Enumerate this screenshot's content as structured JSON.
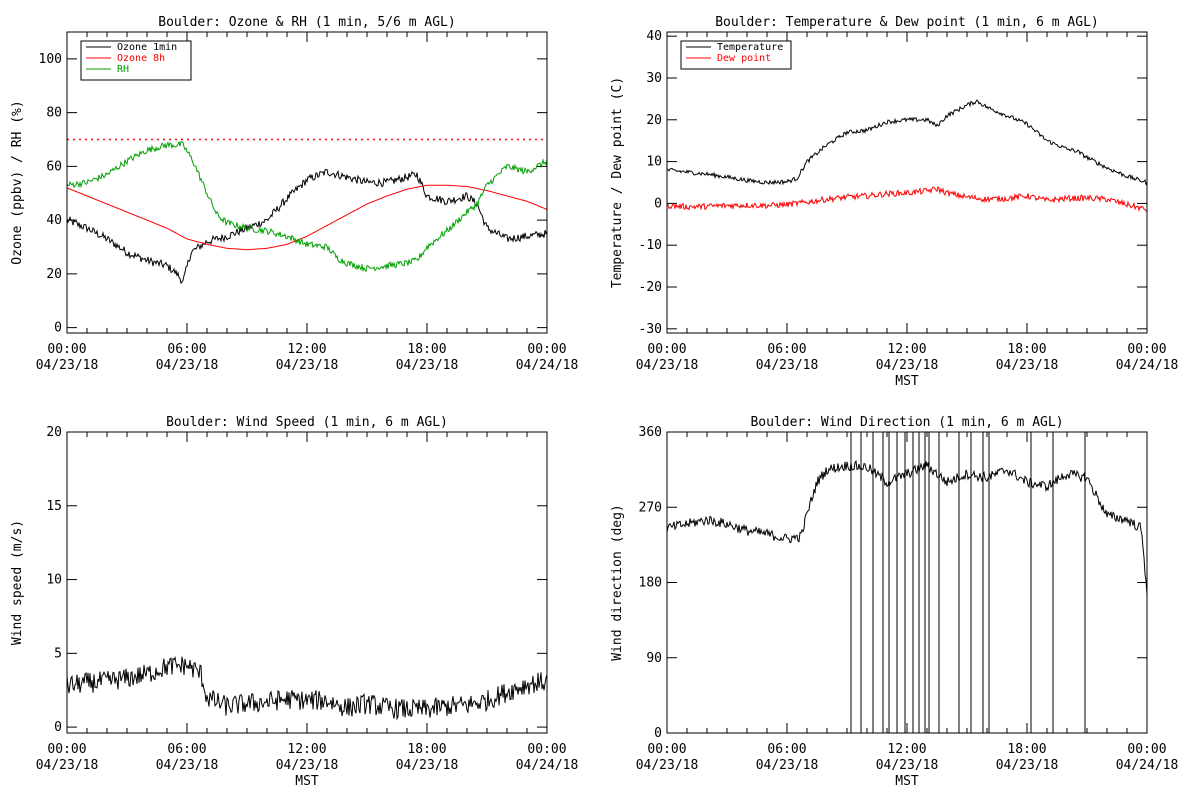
{
  "colors": {
    "black": "#000000",
    "red": "#ff0000",
    "green": "#00a000",
    "background": "#ffffff"
  },
  "chart_data": [
    {
      "id": "ozone_rh",
      "type": "line",
      "title": "Boulder: Ozone & RH (1 min, 5/6 m AGL)",
      "ylabel": "Ozone (ppbv) / RH (%)",
      "xlabel": "",
      "xlim": [
        0,
        24
      ],
      "ylim": [
        -2,
        110
      ],
      "yticks": [
        0,
        20,
        40,
        60,
        80,
        100
      ],
      "xticklabels": [
        [
          "00:00",
          "04/23/18"
        ],
        [
          "06:00",
          "04/23/18"
        ],
        [
          "12:00",
          "04/23/18"
        ],
        [
          "18:00",
          "04/23/18"
        ],
        [
          "00:00",
          "04/24/18"
        ]
      ],
      "reference_line": {
        "y": 70,
        "style": "dotted",
        "color": "#ff0000"
      },
      "legend": {
        "placement": "top-left",
        "entries": [
          "Ozone 1min",
          "Ozone 8h",
          "RH"
        ]
      },
      "series": [
        {
          "name": "Ozone 1min",
          "color": "#000000",
          "noise": 1.5,
          "x": [
            0,
            1,
            2,
            3,
            4,
            5,
            5.5,
            5.8,
            6.2,
            7,
            8,
            9,
            10,
            11,
            12,
            13,
            14,
            15,
            16,
            17,
            17.5,
            18,
            19,
            20,
            20.5,
            21,
            22,
            23,
            24
          ],
          "y": [
            40,
            37,
            33,
            28,
            25,
            23,
            20,
            17,
            28,
            32,
            34,
            37,
            40,
            48,
            55,
            58,
            56,
            54,
            54,
            56,
            57,
            49,
            47,
            49,
            46,
            37,
            33,
            34,
            35
          ]
        },
        {
          "name": "Ozone 8h",
          "color": "#ff0000",
          "noise": 0,
          "x": [
            0,
            1,
            2,
            3,
            4,
            5,
            6,
            7,
            8,
            9,
            10,
            11,
            12,
            13,
            14,
            15,
            16,
            17,
            18,
            19,
            20,
            21,
            22,
            23,
            24
          ],
          "y": [
            52,
            49,
            46,
            43,
            40,
            37,
            33,
            31,
            29.5,
            29,
            29.5,
            31,
            34,
            38,
            42,
            46,
            49,
            51.5,
            53,
            53,
            52.5,
            51,
            49,
            47,
            44
          ]
        },
        {
          "name": "RH",
          "color": "#00a000",
          "noise": 1.2,
          "x": [
            0,
            1,
            2,
            3,
            4,
            5,
            5.8,
            6.3,
            7,
            7.5,
            8,
            9,
            10,
            11,
            12,
            13,
            13.5,
            14,
            15,
            16,
            17,
            17.5,
            18,
            19,
            20,
            20.5,
            21,
            22,
            22.5,
            23,
            24
          ],
          "y": [
            53,
            54,
            57,
            62,
            66,
            68,
            68,
            62,
            50,
            42,
            39,
            37,
            36,
            34,
            31,
            30,
            26,
            24,
            22,
            23,
            24,
            25,
            30,
            36,
            43,
            46,
            53,
            60,
            59,
            58,
            62
          ]
        }
      ]
    },
    {
      "id": "temp_dew",
      "type": "line",
      "title": "Boulder: Temperature & Dew point (1 min, 6 m AGL)",
      "ylabel": "Temperature / Dew point (C)",
      "xlabel": "MST",
      "xlim": [
        0,
        24
      ],
      "ylim": [
        -31,
        41
      ],
      "yticks": [
        -30,
        -20,
        -10,
        0,
        10,
        20,
        30,
        40
      ],
      "xticklabels": [
        [
          "00:00",
          "04/23/18"
        ],
        [
          "06:00",
          "04/23/18"
        ],
        [
          "12:00",
          "04/23/18"
        ],
        [
          "18:00",
          "04/23/18"
        ],
        [
          "00:00",
          "04/24/18"
        ]
      ],
      "legend": {
        "placement": "top-left",
        "entries": [
          "Temperature",
          "Dew point"
        ]
      },
      "series": [
        {
          "name": "Temperature",
          "color": "#000000",
          "noise": 0.5,
          "x": [
            0,
            1,
            2,
            3,
            4,
            5,
            6,
            6.5,
            7,
            8,
            9,
            10,
            11,
            12,
            13,
            13.5,
            14,
            15,
            15.5,
            16,
            17,
            18,
            19,
            20,
            20.5,
            21,
            22,
            23,
            24
          ],
          "y": [
            8,
            7.5,
            7,
            6.3,
            5.5,
            5,
            5.2,
            6,
            10,
            14,
            17,
            17.5,
            19.5,
            20,
            20,
            18.5,
            21,
            23.5,
            24.5,
            23,
            21,
            19,
            15,
            13,
            12.5,
            11,
            8.5,
            6.5,
            5
          ]
        },
        {
          "name": "Dew point",
          "color": "#ff0000",
          "noise": 0.7,
          "x": [
            0,
            1,
            2,
            3,
            4,
            5,
            6,
            7,
            8,
            9,
            10,
            11,
            12,
            13,
            13.5,
            14,
            15,
            16,
            17,
            18,
            19,
            20,
            21,
            22,
            23,
            24
          ],
          "y": [
            -0.5,
            -0.8,
            -0.7,
            -0.5,
            -0.4,
            -0.5,
            -0.3,
            0.3,
            1,
            1.5,
            1.8,
            2.3,
            2.5,
            3,
            3.5,
            2.5,
            1.5,
            1,
            1.2,
            1.8,
            0.7,
            1.2,
            1.3,
            1,
            -0.3,
            -1.5
          ]
        }
      ]
    },
    {
      "id": "wind_speed",
      "type": "line",
      "title": "Boulder: Wind Speed (1 min, 6 m AGL)",
      "ylabel": "Wind speed (m/s)",
      "xlabel": "MST",
      "xlim": [
        0,
        24
      ],
      "ylim": [
        -0.4,
        20
      ],
      "yticks": [
        0,
        5,
        10,
        15,
        20
      ],
      "xticklabels": [
        [
          "00:00",
          "04/23/18"
        ],
        [
          "06:00",
          "04/23/18"
        ],
        [
          "12:00",
          "04/23/18"
        ],
        [
          "18:00",
          "04/23/18"
        ],
        [
          "00:00",
          "04/24/18"
        ]
      ],
      "series": [
        {
          "name": "",
          "color": "#000000",
          "noise": 0.7,
          "x": [
            0,
            1,
            2,
            3,
            4,
            5,
            6,
            6.7,
            7,
            8,
            9,
            10,
            11,
            12,
            13,
            14,
            15,
            16,
            17,
            18,
            19,
            20,
            21,
            22,
            23,
            24
          ],
          "y": [
            2.8,
            3.0,
            3.1,
            3.3,
            3.6,
            4.1,
            4.2,
            3.6,
            2.0,
            1.4,
            1.6,
            1.7,
            1.9,
            1.8,
            1.8,
            1.3,
            1.6,
            1.3,
            1.2,
            1.2,
            1.4,
            1.5,
            1.8,
            2.4,
            2.9,
            3.1
          ]
        }
      ]
    },
    {
      "id": "wind_dir",
      "type": "line",
      "title": "Boulder: Wind Direction (1 min, 6 m AGL)",
      "ylabel": "Wind direction (deg)",
      "xlabel": "MST",
      "xlim": [
        0,
        24
      ],
      "ylim": [
        0,
        360
      ],
      "yticks": [
        0,
        90,
        180,
        270,
        360
      ],
      "xticklabels": [
        [
          "00:00",
          "04/23/18"
        ],
        [
          "06:00",
          "04/23/18"
        ],
        [
          "12:00",
          "04/23/18"
        ],
        [
          "18:00",
          "04/23/18"
        ],
        [
          "00:00",
          "04/24/18"
        ]
      ],
      "series": [
        {
          "name": "",
          "color": "#000000",
          "noise": 6,
          "x": [
            0,
            1,
            2,
            3,
            4,
            5,
            6,
            6.7,
            7,
            7.5,
            8,
            9,
            10,
            11,
            12,
            13,
            14,
            15,
            16,
            17,
            18,
            19,
            20,
            21,
            22,
            23,
            23.7,
            24
          ],
          "y": [
            245,
            250,
            255,
            250,
            242,
            238,
            232,
            235,
            262,
            300,
            315,
            320,
            318,
            300,
            310,
            320,
            300,
            310,
            305,
            315,
            300,
            295,
            310,
            305,
            260,
            255,
            245,
            170
          ]
        }
      ],
      "direction_flips": [
        9.2,
        9.7,
        10.3,
        10.8,
        11.1,
        11.5,
        11.9,
        12.3,
        12.6,
        12.9,
        13.1,
        13.6,
        14.6,
        15.2,
        15.8,
        16.1,
        18.2,
        19.3,
        20.9
      ]
    }
  ]
}
